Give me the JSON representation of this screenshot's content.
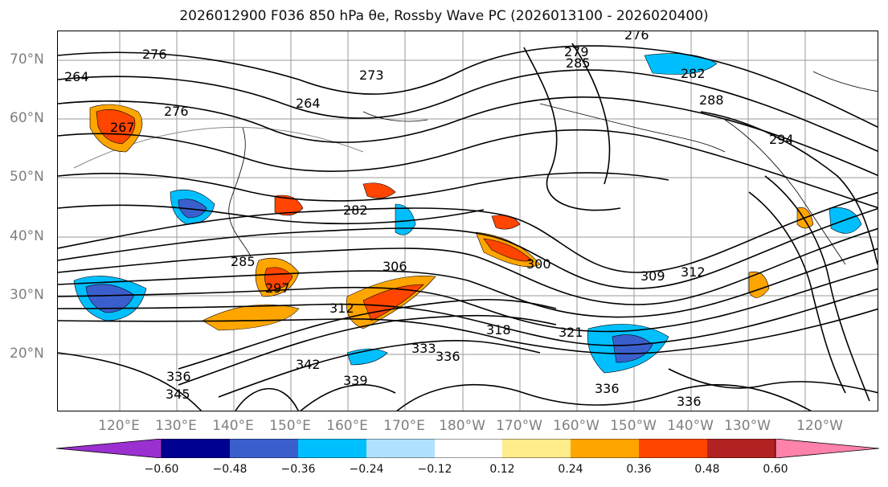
{
  "title": "2026012900 F036 850 hPa θe, Rossby Wave PC (2026013100 - 2026020400)",
  "map": {
    "lat_labels": [
      "70°N",
      "60°N",
      "50°N",
      "40°N",
      "30°N",
      "20°N"
    ],
    "lon_labels": [
      "120°E",
      "130°E",
      "140°E",
      "150°E",
      "160°E",
      "170°E",
      "180°W",
      "170°W",
      "160°W",
      "150°W",
      "140°W",
      "130°W",
      "120°W"
    ],
    "contour_labels": [
      "276",
      "279",
      "285",
      "282",
      "288",
      "294",
      "276",
      "273",
      "264",
      "264",
      "276",
      "267",
      "282",
      "285",
      "297",
      "306",
      "300",
      "309",
      "312",
      "312",
      "318",
      "321",
      "333",
      "336",
      "336",
      "339",
      "342",
      "345",
      "336",
      "336"
    ]
  },
  "colorbar": {
    "ticks": [
      "−0.60",
      "−0.48",
      "−0.36",
      "−0.24",
      "−0.12",
      "0.12",
      "0.24",
      "0.36",
      "0.48",
      "0.60"
    ],
    "colors": [
      "#9b30d0",
      "#000090",
      "#3a5fcd",
      "#00bfff",
      "#b0e2ff",
      "#ffffff",
      "#ffec8b",
      "#ffa500",
      "#ff4500",
      "#b22222",
      "#ff82ab"
    ]
  }
}
